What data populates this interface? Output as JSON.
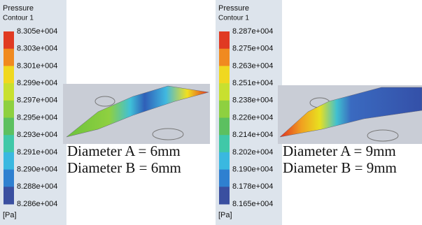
{
  "panels": [
    {
      "legend_title": "Pressure",
      "legend_subtitle": "Contour 1",
      "ticks": [
        "8.305e+004",
        "8.303e+004",
        "8.301e+004",
        "8.299e+004",
        "8.297e+004",
        "8.295e+004",
        "8.293e+004",
        "8.291e+004",
        "8.290e+004",
        "8.288e+004",
        "8.286e+004"
      ],
      "unit": "[Pa]",
      "captions": [
        "Diameter A = 6mm",
        "Diameter B = 6mm"
      ]
    },
    {
      "legend_title": "Pressure",
      "legend_subtitle": "Contour 1",
      "ticks": [
        "8.287e+004",
        "8.275e+004",
        "8.263e+004",
        "8.251e+004",
        "8.238e+004",
        "8.226e+004",
        "8.214e+004",
        "8.202e+004",
        "8.190e+004",
        "8.178e+004",
        "8.165e+004"
      ],
      "unit": "[Pa]",
      "captions": [
        "Diameter A = 9mm",
        "Diameter B = 9mm"
      ]
    }
  ]
}
